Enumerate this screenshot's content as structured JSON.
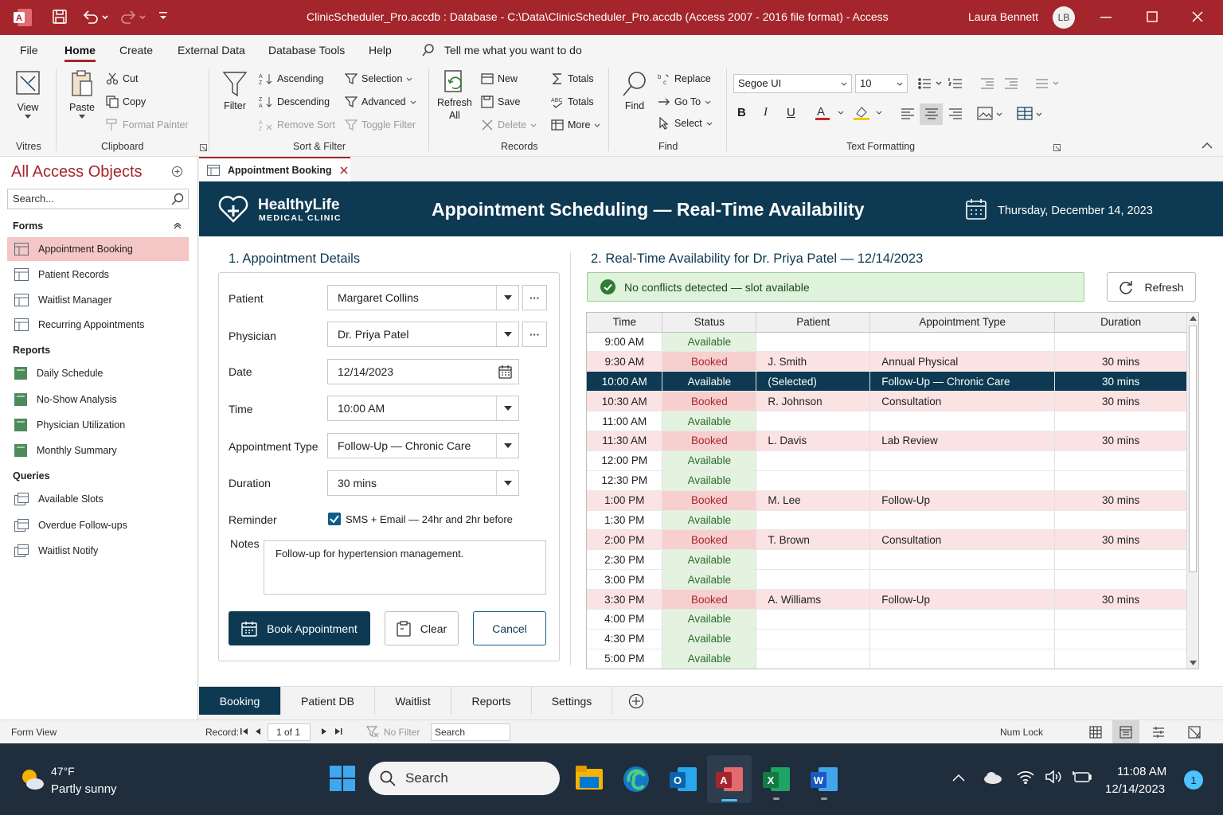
{
  "titlebar": {
    "title": "ClinicScheduler_Pro.accdb : Database - C:\\Data\\ClinicScheduler_Pro.accdb (Access 2007 - 2016 file format)  -  Access",
    "user_name": "Laura Bennett",
    "user_initials": "LB"
  },
  "menu": {
    "tabs": [
      "File",
      "Home",
      "Create",
      "External Data",
      "Database Tools",
      "Help"
    ],
    "active": "Home",
    "tell_me": "Tell me what you want to do"
  },
  "ribbon": {
    "view": "View",
    "paste": "Paste",
    "cut": "Cut",
    "copy": "Copy",
    "format_painter": "Format Painter",
    "filter": "Filter",
    "ascending": "Ascending",
    "descending": "Descending",
    "remove_sort": "Remove Sort",
    "selection": "Selection",
    "advanced": "Advanced",
    "toggle_filter": "Toggle Filter",
    "refresh": "Refresh",
    "refresh_all": "All",
    "new": "New",
    "save": "Save",
    "delete": "Delete",
    "totals_sigma": "Totals",
    "spelling": "Totals",
    "more": "More",
    "find": "Find",
    "replace": "Replace",
    "goto": "Go To",
    "select": "Select",
    "font": "Segoe UI",
    "font_size": "10",
    "groups": {
      "views": "Vitres",
      "clipboard": "Clipboard",
      "sort_filter": "Sort & Filter",
      "records": "Records",
      "find": "Find",
      "text_formatting": "Text Formatting"
    }
  },
  "nav": {
    "header": "All Access Objects",
    "search_placeholder": "Search...",
    "sections": {
      "forms": "Forms",
      "reports": "Reports",
      "queries": "Queries"
    },
    "forms": [
      "Appointment Booking",
      "Patient Records",
      "Waitlist Manager",
      "Recurring Appointments"
    ],
    "reports": [
      "Daily Schedule",
      "No-Show Analysis",
      "Physician Utilization",
      "Monthly Summary"
    ],
    "queries": [
      "Available Slots",
      "Overdue Follow-ups",
      "Waitlist Notify"
    ]
  },
  "doc_tab": "Appointment Booking",
  "form": {
    "brand_name": "HealthyLife",
    "brand_sub": "MEDICAL CLINIC",
    "title": "Appointment Scheduling — Real-Time Availability",
    "date": "Thursday, December 14, 2023",
    "section1": "1. Appointment Details",
    "section2": "2. Real-Time Availability for Dr. Priya Patel — 12/14/2023",
    "labels": {
      "patient": "Patient",
      "physician": "Physician",
      "date": "Date",
      "time": "Time",
      "appt_type": "Appointment Type",
      "duration": "Duration",
      "reminder": "Reminder",
      "notes": "Notes"
    },
    "values": {
      "patient": "Margaret Collins",
      "physician": "Dr. Priya Patel",
      "date": "12/14/2023",
      "time": "10:00 AM",
      "appt_type": "Follow-Up — Chronic Care",
      "duration": "30 mins",
      "reminder": "SMS + Email — 24hr and 2hr before",
      "notes": "Follow-up for hypertension management."
    },
    "buttons": {
      "book": "Book Appointment",
      "clear": "Clear",
      "cancel": "Cancel",
      "refresh": "Refresh"
    },
    "conflict_status": "No conflicts detected — slot available"
  },
  "grid": {
    "columns": [
      "Time",
      "Status",
      "Patient",
      "Appointment Type",
      "Duration"
    ],
    "rows": [
      {
        "time": "9:00 AM",
        "status": "Available",
        "patient": "",
        "type": "",
        "duration": ""
      },
      {
        "time": "9:30 AM",
        "status": "Booked",
        "patient": "J. Smith",
        "type": "Annual Physical",
        "duration": "30 mins"
      },
      {
        "time": "10:00 AM",
        "status": "Available",
        "patient": "(Selected)",
        "type": "Follow-Up — Chronic Care",
        "duration": "30 mins",
        "selected": true
      },
      {
        "time": "10:30 AM",
        "status": "Booked",
        "patient": "R. Johnson",
        "type": "Consultation",
        "duration": "30 mins"
      },
      {
        "time": "11:00 AM",
        "status": "Available",
        "patient": "",
        "type": "",
        "duration": ""
      },
      {
        "time": "11:30 AM",
        "status": "Booked",
        "patient": "L. Davis",
        "type": "Lab Review",
        "duration": "30 mins"
      },
      {
        "time": "12:00 PM",
        "status": "Available",
        "patient": "",
        "type": "",
        "duration": ""
      },
      {
        "time": "12:30 PM",
        "status": "Available",
        "patient": "",
        "type": "",
        "duration": ""
      },
      {
        "time": "1:00 PM",
        "status": "Booked",
        "patient": "M. Lee",
        "type": "Follow-Up",
        "duration": "30 mins"
      },
      {
        "time": "1:30 PM",
        "status": "Available",
        "patient": "",
        "type": "",
        "duration": ""
      },
      {
        "time": "2:00 PM",
        "status": "Booked",
        "patient": "T. Brown",
        "type": "Consultation",
        "duration": "30 mins"
      },
      {
        "time": "2:30 PM",
        "status": "Available",
        "patient": "",
        "type": "",
        "duration": ""
      },
      {
        "time": "3:00 PM",
        "status": "Available",
        "patient": "",
        "type": "",
        "duration": ""
      },
      {
        "time": "3:30 PM",
        "status": "Booked",
        "patient": "A. Williams",
        "type": "Follow-Up",
        "duration": "30 mins"
      },
      {
        "time": "4:00 PM",
        "status": "Available",
        "patient": "",
        "type": "",
        "duration": ""
      },
      {
        "time": "4:30 PM",
        "status": "Available",
        "patient": "",
        "type": "",
        "duration": ""
      },
      {
        "time": "5:00 PM",
        "status": "Available",
        "patient": "",
        "type": "",
        "duration": ""
      }
    ]
  },
  "bottom_tabs": [
    "Booking",
    "Patient DB",
    "Waitlist",
    "Reports",
    "Settings"
  ],
  "statusbar": {
    "view": "Form View",
    "record_label": "Record:",
    "record_pos": "1 of 1",
    "no_filter": "No Filter",
    "search": "Search",
    "num_lock": "Num Lock"
  },
  "taskbar": {
    "temp": "47°F",
    "weather": "Partly sunny",
    "search": "Search",
    "time": "11:08 AM",
    "date": "12/14/2023",
    "notif": "1"
  },
  "colors": {
    "accent": "#a4262c",
    "navy": "#0d3a52",
    "available_bg": "#e3f3e0",
    "booked_bg": "#fbe3e3"
  }
}
